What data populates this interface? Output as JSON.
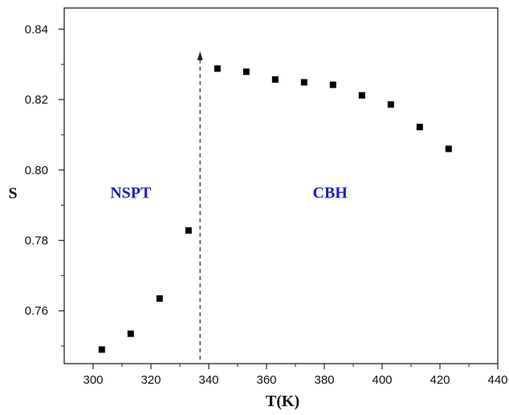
{
  "chart_data": {
    "type": "scatter",
    "title": "",
    "xlabel": "T(K)",
    "ylabel": "S",
    "xlim": [
      290,
      440
    ],
    "ylim": [
      0.745,
      0.846
    ],
    "x_ticks": [
      300,
      320,
      340,
      360,
      380,
      400,
      420,
      440
    ],
    "y_ticks": [
      0.76,
      0.78,
      0.8,
      0.82,
      0.84
    ],
    "grid": false,
    "legend": "none",
    "series": [
      {
        "marker": "square",
        "color": "#000000",
        "points": [
          {
            "x": 303,
            "y": 0.749
          },
          {
            "x": 313,
            "y": 0.7535
          },
          {
            "x": 323,
            "y": 0.7635
          },
          {
            "x": 333,
            "y": 0.7828
          },
          {
            "x": 343,
            "y": 0.8288
          },
          {
            "x": 353,
            "y": 0.8279
          },
          {
            "x": 363,
            "y": 0.8257
          },
          {
            "x": 373,
            "y": 0.8249
          },
          {
            "x": 383,
            "y": 0.8242
          },
          {
            "x": 393,
            "y": 0.8212
          },
          {
            "x": 403,
            "y": 0.8186
          },
          {
            "x": 413,
            "y": 0.8122
          },
          {
            "x": 423,
            "y": 0.806
          }
        ]
      }
    ],
    "annotations": [
      {
        "text": "NSPT",
        "x": 313,
        "y": 0.7937,
        "color": "#1a1acc"
      },
      {
        "text": "CBH",
        "x": 382,
        "y": 0.7937,
        "color": "#1a1acc"
      }
    ],
    "divider": {
      "x": 337,
      "style": "dashed-arrow"
    }
  }
}
